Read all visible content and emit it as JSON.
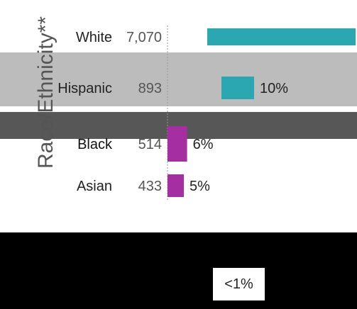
{
  "chart_data": {
    "type": "bar",
    "orientation": "horizontal",
    "ylabel": "Race/Ethnicity**",
    "categories": [
      "White",
      "Hispanic",
      "Black",
      "Asian"
    ],
    "counts": [
      "7,070",
      "893",
      "514",
      "433"
    ],
    "values": [
      80,
      10,
      6,
      5
    ],
    "value_labels": [
      "",
      "10%",
      "6%",
      "5%"
    ],
    "bar_colors": [
      "#2aa7b0",
      "#2aa7b0",
      "#a52fa0",
      "#a52fa0"
    ],
    "xlim": [
      0,
      100
    ],
    "legend": "none",
    "grid": false
  },
  "footnote_badge": "<1%",
  "colors": {
    "band_gray": "#bcbcbc",
    "band_dark": "#575757",
    "band_black": "#000000",
    "teal": "#2aa7b0",
    "purple": "#a52fa0"
  }
}
